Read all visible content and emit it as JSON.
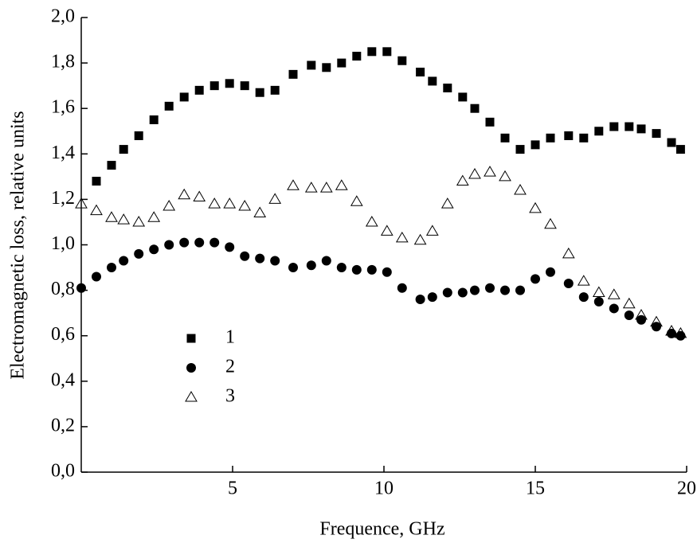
{
  "chart_data": {
    "type": "scatter",
    "x_label": "Frequence, GHz",
    "y_label": "Electromagnetic loss, relative units",
    "xlim": [
      0,
      20
    ],
    "xticks": [
      5,
      10,
      15,
      20
    ],
    "ylim": [
      0,
      2
    ],
    "yticks": [
      {
        "value": 0,
        "label": "0,0"
      },
      {
        "value": 0.2,
        "label": "0,2"
      },
      {
        "value": 0.4,
        "label": "0,4"
      },
      {
        "value": 0.6,
        "label": "0,6"
      },
      {
        "value": 0.8,
        "label": "0,8"
      },
      {
        "value": 1.0,
        "label": "1,0"
      },
      {
        "value": 1.2,
        "label": "1,2"
      },
      {
        "value": 1.4,
        "label": "1,4"
      },
      {
        "value": 1.6,
        "label": "1,6"
      },
      {
        "value": 1.8,
        "label": "1,8"
      },
      {
        "value": 2.0,
        "label": "2,0"
      }
    ],
    "series": [
      {
        "name": "1",
        "color": "#000000",
        "marker": "square",
        "x": [
          0.5,
          1.0,
          1.4,
          1.9,
          2.4,
          2.9,
          3.4,
          3.9,
          4.4,
          4.9,
          5.4,
          5.9,
          6.4,
          7.0,
          7.6,
          8.1,
          8.6,
          9.1,
          9.6,
          10.1,
          10.6,
          11.2,
          11.6,
          12.1,
          12.6,
          13.0,
          13.5,
          14.0,
          14.5,
          15.0,
          15.5,
          16.1,
          16.6,
          17.1,
          17.6,
          18.1,
          18.5,
          19.0,
          19.5,
          19.8
        ],
        "values": [
          1.28,
          1.35,
          1.42,
          1.48,
          1.55,
          1.61,
          1.65,
          1.68,
          1.7,
          1.71,
          1.7,
          1.67,
          1.68,
          1.75,
          1.79,
          1.78,
          1.8,
          1.83,
          1.85,
          1.85,
          1.81,
          1.76,
          1.72,
          1.69,
          1.65,
          1.6,
          1.54,
          1.47,
          1.42,
          1.44,
          1.47,
          1.48,
          1.47,
          1.5,
          1.52,
          1.52,
          1.51,
          1.49,
          1.45,
          1.42
        ]
      },
      {
        "name": "2",
        "color": "#000000",
        "marker": "circle",
        "x": [
          0.0,
          0.5,
          1.0,
          1.4,
          1.9,
          2.4,
          2.9,
          3.4,
          3.9,
          4.4,
          4.9,
          5.4,
          5.9,
          6.4,
          7.0,
          7.6,
          8.1,
          8.6,
          9.1,
          9.6,
          10.1,
          10.6,
          11.2,
          11.6,
          12.1,
          12.6,
          13.0,
          13.5,
          14.0,
          14.5,
          15.0,
          15.5,
          16.1,
          16.6,
          17.1,
          17.6,
          18.1,
          18.5,
          19.0,
          19.5,
          19.8
        ],
        "values": [
          0.81,
          0.86,
          0.9,
          0.93,
          0.96,
          0.98,
          1.0,
          1.01,
          1.01,
          1.01,
          0.99,
          0.95,
          0.94,
          0.93,
          0.9,
          0.91,
          0.93,
          0.9,
          0.89,
          0.89,
          0.88,
          0.81,
          0.76,
          0.77,
          0.79,
          0.79,
          0.8,
          0.81,
          0.8,
          0.8,
          0.85,
          0.88,
          0.83,
          0.77,
          0.75,
          0.72,
          0.69,
          0.67,
          0.64,
          0.61,
          0.6
        ]
      },
      {
        "name": "3",
        "color": "#000000",
        "marker": "triangle",
        "x": [
          0.0,
          0.5,
          1.0,
          1.4,
          1.9,
          2.4,
          2.9,
          3.4,
          3.9,
          4.4,
          4.9,
          5.4,
          5.9,
          6.4,
          7.0,
          7.6,
          8.1,
          8.6,
          9.1,
          9.6,
          10.1,
          10.6,
          11.2,
          11.6,
          12.1,
          12.6,
          13.0,
          13.5,
          14.0,
          14.5,
          15.0,
          15.5,
          16.1,
          16.6,
          17.1,
          17.6,
          18.1,
          18.5,
          19.0,
          19.5,
          19.8
        ],
        "values": [
          1.18,
          1.15,
          1.12,
          1.11,
          1.1,
          1.12,
          1.17,
          1.22,
          1.21,
          1.18,
          1.18,
          1.17,
          1.14,
          1.2,
          1.26,
          1.25,
          1.25,
          1.26,
          1.19,
          1.1,
          1.06,
          1.03,
          1.02,
          1.06,
          1.18,
          1.28,
          1.31,
          1.32,
          1.3,
          1.24,
          1.16,
          1.09,
          0.96,
          0.84,
          0.79,
          0.78,
          0.74,
          0.69,
          0.66,
          0.62,
          0.61
        ]
      }
    ]
  }
}
